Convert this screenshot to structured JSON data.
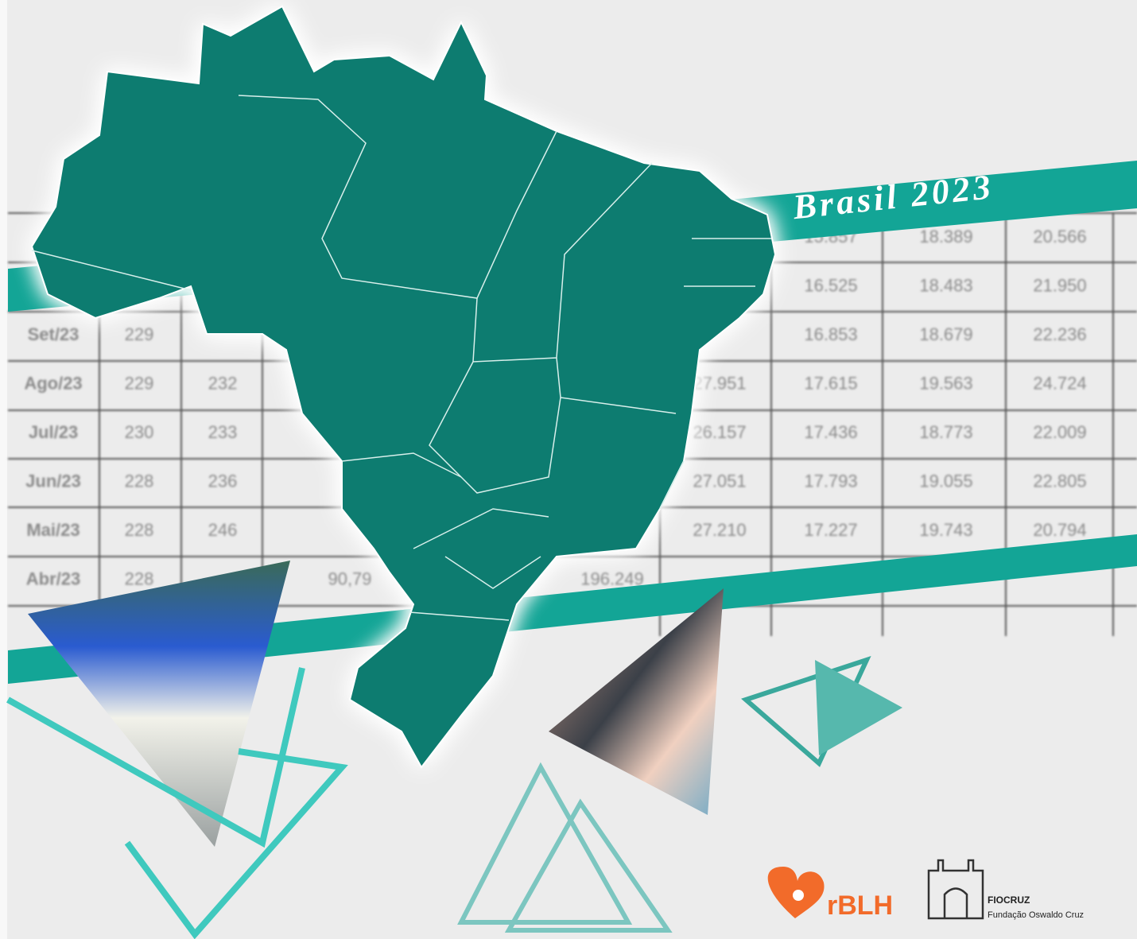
{
  "banner_title": "Brasil 2023",
  "table": {
    "rows": [
      [
        null,
        null,
        null,
        null,
        null,
        null,
        "15.857",
        "18.389",
        "20.566"
      ],
      [
        null,
        null,
        null,
        null,
        null,
        null,
        "16.525",
        "18.483",
        "21.950"
      ],
      [
        "Set/23",
        "229",
        null,
        null,
        null,
        null,
        "16.853",
        "18.679",
        "22.236"
      ],
      [
        "Ago/23",
        "229",
        "232",
        null,
        null,
        "27.951",
        "17.615",
        "19.563",
        "24.724"
      ],
      [
        "Jul/23",
        "230",
        "233",
        null,
        null,
        "26.157",
        "17.436",
        "18.773",
        "22.009"
      ],
      [
        "Jun/23",
        "228",
        "236",
        null,
        null,
        "27.051",
        "17.793",
        "19.055",
        "22.805"
      ],
      [
        "Mai/23",
        "228",
        "246",
        null,
        null,
        "27.210",
        "17.227",
        "19.743",
        "20.794"
      ],
      [
        "Abr/23",
        "228",
        null,
        "90,79",
        "196.249",
        null,
        null,
        null,
        null
      ]
    ]
  },
  "logos": {
    "rblh": "rBLH",
    "fiocruz": "FIOCRUZ",
    "fiocruz_subtitle": "Fundação Oswaldo Cruz"
  }
}
